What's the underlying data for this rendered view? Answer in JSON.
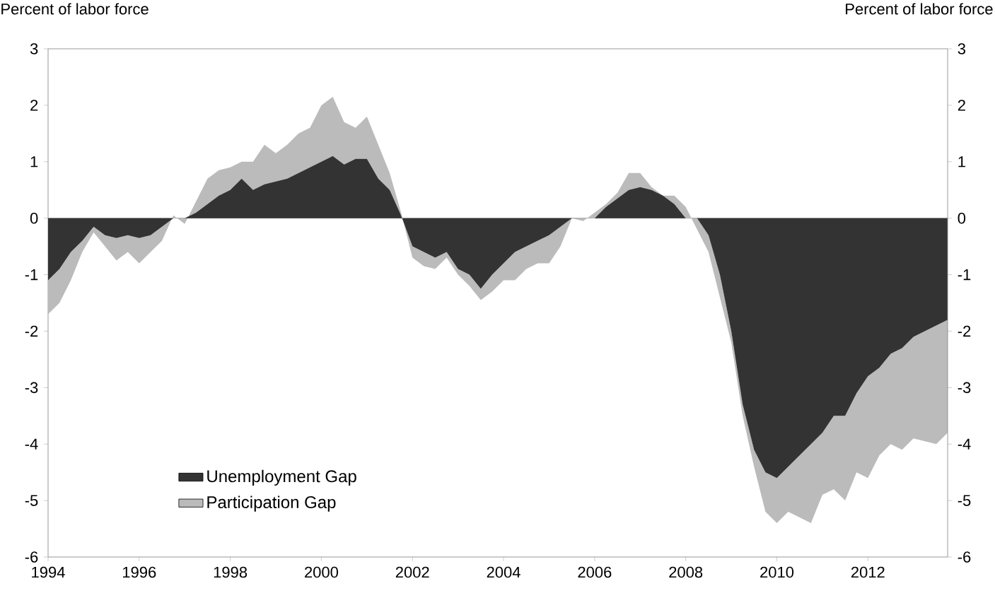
{
  "chart_data": {
    "type": "area",
    "stacked": true,
    "ylabel": "Percent of labor force",
    "y2label": "Percent of labor force",
    "x": [
      1994.0,
      1994.25,
      1994.5,
      1994.75,
      1995.0,
      1995.25,
      1995.5,
      1995.75,
      1996.0,
      1996.25,
      1996.5,
      1996.75,
      1997.0,
      1997.25,
      1997.5,
      1997.75,
      1998.0,
      1998.25,
      1998.5,
      1998.75,
      1999.0,
      1999.25,
      1999.5,
      1999.75,
      2000.0,
      2000.25,
      2000.5,
      2000.75,
      2001.0,
      2001.25,
      2001.5,
      2001.75,
      2002.0,
      2002.25,
      2002.5,
      2002.75,
      2003.0,
      2003.25,
      2003.5,
      2003.75,
      2004.0,
      2004.25,
      2004.5,
      2004.75,
      2005.0,
      2005.25,
      2005.5,
      2005.75,
      2006.0,
      2006.25,
      2006.5,
      2006.75,
      2007.0,
      2007.25,
      2007.5,
      2007.75,
      2008.0,
      2008.25,
      2008.5,
      2008.75,
      2009.0,
      2009.25,
      2009.5,
      2009.75,
      2010.0,
      2010.25,
      2010.5,
      2010.75,
      2011.0,
      2011.25,
      2011.5,
      2011.75,
      2012.0,
      2012.25,
      2012.5,
      2012.75,
      2013.0,
      2013.5,
      2013.75
    ],
    "series": [
      {
        "name": "Unemployment Gap",
        "color": "#333333",
        "values": [
          -1.1,
          -0.9,
          -0.6,
          -0.4,
          -0.15,
          -0.3,
          -0.35,
          -0.3,
          -0.35,
          -0.3,
          -0.15,
          0,
          0,
          0.1,
          0.25,
          0.4,
          0.5,
          0.7,
          0.5,
          0.6,
          0.65,
          0.7,
          0.8,
          0.9,
          1.0,
          1.1,
          0.95,
          1.05,
          1.05,
          0.7,
          0.5,
          0.05,
          -0.5,
          -0.6,
          -0.7,
          -0.6,
          -0.9,
          -1.0,
          -1.25,
          -1.0,
          -0.8,
          -0.6,
          -0.5,
          -0.4,
          -0.3,
          -0.15,
          0,
          0,
          0,
          0.2,
          0.35,
          0.5,
          0.55,
          0.5,
          0.4,
          0.25,
          0,
          0,
          -0.3,
          -1.0,
          -2.0,
          -3.3,
          -4.1,
          -4.5,
          -4.6,
          -4.4,
          -4.2,
          -4.0,
          -3.8,
          -3.5,
          -3.5,
          -3.1,
          -2.8,
          -2.65,
          -2.4,
          -2.3,
          -2.1,
          -1.9,
          -1.8
        ]
      },
      {
        "name": "Participation Gap",
        "color": "#bbbbbb",
        "values": [
          -0.6,
          -0.6,
          -0.5,
          -0.2,
          -0.1,
          -0.2,
          -0.4,
          -0.3,
          -0.45,
          -0.3,
          -0.25,
          0.05,
          -0.1,
          0.2,
          0.45,
          0.45,
          0.4,
          0.3,
          0.5,
          0.7,
          0.5,
          0.6,
          0.7,
          0.7,
          1.0,
          1.05,
          0.75,
          0.55,
          0.75,
          0.6,
          0.3,
          0.05,
          -0.2,
          -0.25,
          -0.2,
          -0.1,
          -0.1,
          -0.2,
          -0.2,
          -0.3,
          -0.3,
          -0.5,
          -0.4,
          -0.4,
          -0.5,
          -0.35,
          0,
          -0.05,
          0.1,
          0.05,
          0.1,
          0.3,
          0.25,
          0.05,
          0,
          0.15,
          0.2,
          -0.2,
          -0.3,
          -0.4,
          -0.2,
          -0.2,
          -0.3,
          -0.7,
          -0.8,
          -0.8,
          -1.1,
          -1.4,
          -1.1,
          -1.3,
          -1.5,
          -1.4,
          -1.8,
          -1.55,
          -1.6,
          -1.8,
          -1.8,
          -2.1,
          -2.0
        ]
      }
    ],
    "xlim": [
      1994,
      2013.75
    ],
    "xticks": [
      1994,
      1996,
      1998,
      2000,
      2002,
      2004,
      2006,
      2008,
      2010,
      2012
    ],
    "ylim": [
      -6,
      3
    ],
    "yticks": [
      -6,
      -5,
      -4,
      -3,
      -2,
      -1,
      0,
      1,
      2,
      3
    ],
    "y2lim": [
      -6,
      3
    ],
    "y2ticks": [
      -6,
      -5,
      -4,
      -3,
      -2,
      -1,
      0,
      1,
      2,
      3
    ],
    "legend": "bottom left"
  }
}
